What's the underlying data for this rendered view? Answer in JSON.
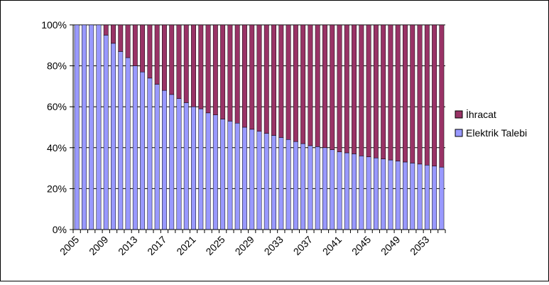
{
  "chart_data": {
    "type": "bar",
    "stacked": "percent",
    "grid": true,
    "legend_position": "right",
    "categories": [
      "2005",
      "2006",
      "2007",
      "2008",
      "2009",
      "2010",
      "2011",
      "2012",
      "2013",
      "2014",
      "2015",
      "2016",
      "2017",
      "2018",
      "2019",
      "2020",
      "2021",
      "2022",
      "2023",
      "2024",
      "2025",
      "2026",
      "2027",
      "2028",
      "2029",
      "2030",
      "2031",
      "2032",
      "2033",
      "2034",
      "2035",
      "2036",
      "2037",
      "2038",
      "2039",
      "2040",
      "2041",
      "2042",
      "2043",
      "2044",
      "2045",
      "2046",
      "2047",
      "2048",
      "2049",
      "2050",
      "2051",
      "2052",
      "2053",
      "2054",
      "2055"
    ],
    "tick_labels": [
      "2005",
      "2009",
      "2013",
      "2017",
      "2021",
      "2025",
      "2029",
      "2033",
      "2037",
      "2041",
      "2045",
      "2049",
      "2053"
    ],
    "y_ticks": [
      "0%",
      "20%",
      "40%",
      "60%",
      "80%",
      "100%"
    ],
    "ylim": [
      0,
      100
    ],
    "series": [
      {
        "name": "Elektrik Talebi",
        "color": "#9999ff",
        "values": [
          100,
          100,
          100,
          100,
          95,
          91,
          87,
          84,
          80,
          77,
          74,
          71,
          68,
          66,
          64,
          62,
          60,
          59,
          57,
          56,
          54,
          53,
          52,
          50,
          49,
          48,
          47,
          46,
          45,
          44,
          43,
          42,
          41,
          40.5,
          40,
          39,
          38,
          37.5,
          37,
          36,
          35.5,
          35,
          34.5,
          34,
          33.5,
          33,
          32.5,
          32,
          31.5,
          31,
          30.5
        ]
      },
      {
        "name": "İhracat",
        "color": "#993366",
        "values": [
          0,
          0,
          0,
          0,
          5,
          9,
          13,
          16,
          20,
          23,
          26,
          29,
          32,
          34,
          36,
          38,
          40,
          41,
          43,
          44,
          46,
          47,
          48,
          50,
          51,
          52,
          53,
          54,
          55,
          56,
          57,
          58,
          59,
          59.5,
          60,
          61,
          62,
          62.5,
          63,
          64,
          64.5,
          65,
          65.5,
          66,
          66.5,
          67,
          67.5,
          68,
          68.5,
          69,
          69.5
        ]
      }
    ]
  }
}
